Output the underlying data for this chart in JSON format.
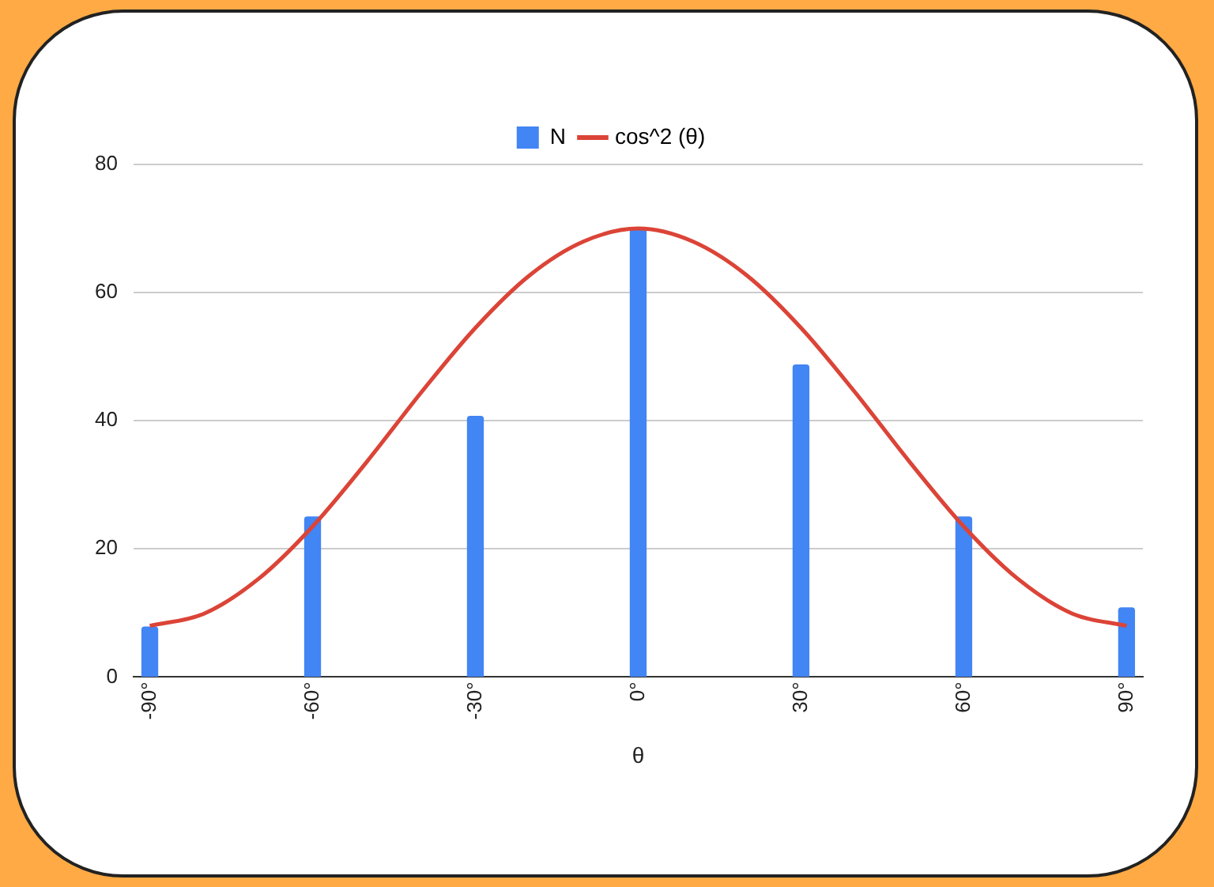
{
  "chart_data": {
    "type": "bar",
    "xlabel": "θ",
    "x": [
      -90,
      -60,
      -30,
      0,
      30,
      60,
      90
    ],
    "series": [
      {
        "name": "N",
        "color": "#4285f4",
        "values": [
          7.8,
          25,
          40.7,
          70,
          48.7,
          25,
          10.8
        ]
      },
      {
        "name": "cos^2 (θ)",
        "type": "line",
        "color": "#db4437",
        "x": [
          -90,
          -80,
          -70,
          -60,
          -50,
          -40,
          -30,
          -20,
          -10,
          0,
          10,
          20,
          30,
          40,
          50,
          60,
          70,
          80,
          90
        ],
        "values": [
          8,
          9.9,
          15.3,
          23.5,
          33.6,
          44.4,
          54.5,
          62.7,
          68,
          70,
          68,
          62.7,
          54.5,
          44.4,
          33.6,
          23.5,
          15.3,
          9.9,
          8
        ]
      }
    ],
    "xlim": [
      -93,
      93
    ],
    "xticks": [
      {
        "value": -90,
        "label": "-90°"
      },
      {
        "value": -60,
        "label": "-60°"
      },
      {
        "value": -30,
        "label": "-30°"
      },
      {
        "value": 0,
        "label": "0°"
      },
      {
        "value": 30,
        "label": "30°"
      },
      {
        "value": 60,
        "label": "60°"
      },
      {
        "value": 90,
        "label": "90°"
      }
    ],
    "ylim": [
      0,
      80
    ],
    "yticks": [
      0,
      20,
      40,
      60,
      80
    ],
    "grid": "y",
    "legend": "top",
    "marker": "none",
    "line_style": "solid"
  }
}
